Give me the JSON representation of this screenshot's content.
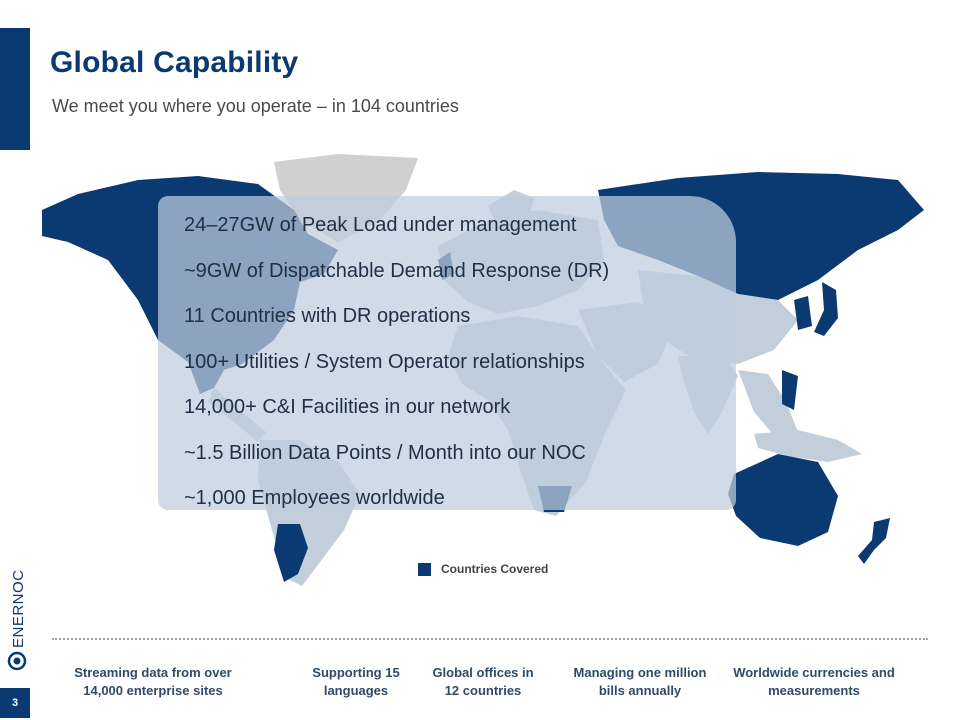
{
  "slide": {
    "title": "Global Capability",
    "subtitle": "We meet you where you operate – in 104 countries",
    "page_number": "3"
  },
  "stats": [
    "24–27GW of Peak Load under management",
    "~9GW of Dispatchable Demand Response (DR)",
    "11 Countries with DR operations",
    "100+ Utilities / System Operator relationships",
    "14,000+ C&I Facilities in our network",
    "~1.5 Billion Data Points / Month into our NOC",
    "~1,000 Employees worldwide"
  ],
  "legend": {
    "label": "Countries Covered",
    "color": "#0b3a72"
  },
  "features": [
    "Streaming data from over 14,000 enterprise sites",
    "Supporting 15 languages",
    "Global offices in 12 countries",
    "Managing one million bills annually",
    "Worldwide currencies and measurements"
  ],
  "brand": {
    "logo_text": "ENERNOC",
    "primary_color": "#0b3a72",
    "map_light_color": "#c3cedb",
    "map_gray_color": "#d0d0d0"
  }
}
